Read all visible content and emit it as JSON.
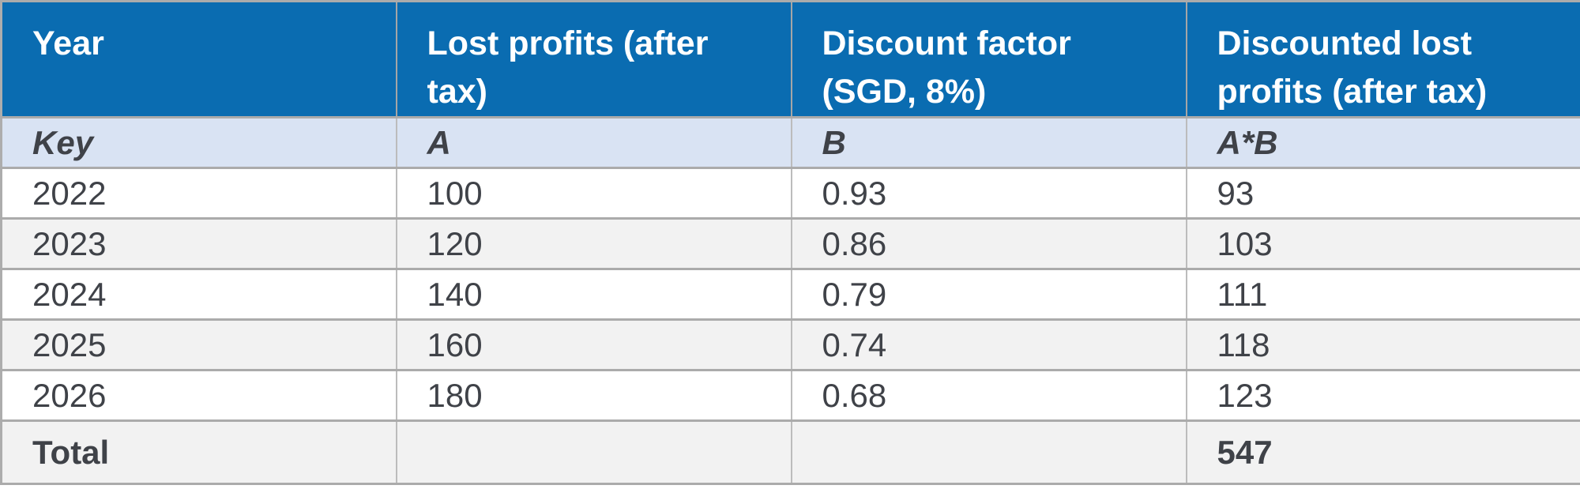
{
  "colors": {
    "header_bg": "#0a6cb1",
    "header_text": "#ffffff",
    "key_row_bg": "#d9e3f3",
    "row_bg": "#ffffff",
    "row_alt_bg": "#f2f2f2",
    "body_text": "#3f4248",
    "border_horizontal": "#ababab",
    "border_vertical": "#bcbcbc"
  },
  "table": {
    "headers": [
      "Year",
      "Lost profits (after tax)",
      "Discount factor (SGD, 8%)",
      "Discounted lost profits (after tax)"
    ],
    "key_row": [
      "Key",
      "A",
      "B",
      "A*B"
    ],
    "rows": [
      [
        "2022",
        "100",
        "0.93",
        "93"
      ],
      [
        "2023",
        "120",
        "0.86",
        "103"
      ],
      [
        "2024",
        "140",
        "0.79",
        "111"
      ],
      [
        "2025",
        "160",
        "0.74",
        "118"
      ],
      [
        "2026",
        "180",
        "0.68",
        "123"
      ]
    ],
    "total": {
      "label": "Total",
      "lost_profits": "",
      "discount_factor": "",
      "value": "547"
    }
  }
}
